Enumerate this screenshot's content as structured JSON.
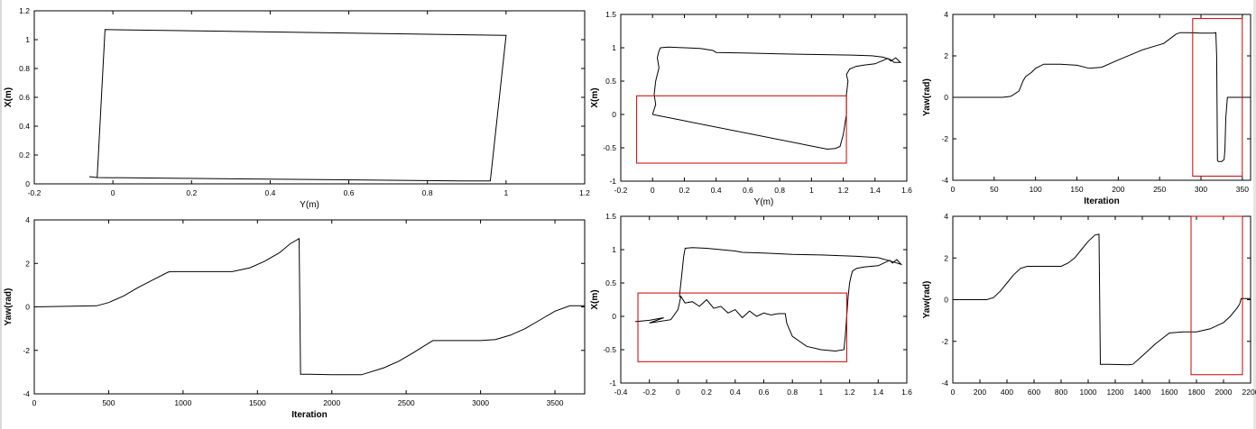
{
  "chart_data": [
    {
      "id": "p1",
      "type": "line",
      "xlabel": "Y(m)",
      "ylabel": "X(m)",
      "xlim": [
        -0.2,
        1.2
      ],
      "ylim": [
        0,
        1.2
      ],
      "xticks": [
        -0.2,
        0,
        0.2,
        0.4,
        0.6,
        0.8,
        1,
        1.2
      ],
      "yticks": [
        0,
        0.2,
        0.4,
        0.6,
        0.8,
        1,
        1.2
      ],
      "grid": false,
      "series": [
        {
          "x": [
            -0.06,
            -0.04,
            0.9,
            0.96,
            1.0,
            -0.02,
            -0.04
          ],
          "y": [
            0.05,
            0.044,
            0.02,
            0.02,
            1.03,
            1.07,
            0.044
          ]
        }
      ],
      "boxes": []
    },
    {
      "id": "p2",
      "type": "line",
      "xlabel": "Y(m)",
      "ylabel": "X(m)",
      "xlim": [
        -0.2,
        1.6
      ],
      "ylim": [
        -1,
        1.5
      ],
      "xticks": [
        -0.2,
        0,
        0.2,
        0.4,
        0.6,
        0.8,
        1,
        1.2,
        1.4,
        1.6
      ],
      "yticks": [
        -1,
        -0.5,
        0,
        0.5,
        1,
        1.5
      ],
      "grid": false,
      "series": [
        {
          "x": [
            0,
            1.1,
            1.15,
            1.18,
            1.2,
            1.22,
            1.22,
            1.23,
            1.22,
            1.24,
            1.28,
            1.33,
            1.4,
            1.48,
            1.5,
            1.53,
            1.56,
            1.52,
            1.5,
            1.45,
            1.38,
            1.25,
            1.0,
            0.8,
            0.6,
            0.4,
            0.38,
            0.3,
            0.2,
            0.1,
            0.05,
            0.04,
            0.03,
            0.04,
            0.02,
            0.01,
            0.02,
            0
          ],
          "y": [
            0,
            -0.52,
            -0.51,
            -0.48,
            -0.3,
            0,
            0.3,
            0.5,
            0.6,
            0.68,
            0.72,
            0.74,
            0.76,
            0.84,
            0.8,
            0.85,
            0.78,
            0.78,
            0.82,
            0.86,
            0.88,
            0.89,
            0.9,
            0.91,
            0.92,
            0.93,
            0.96,
            0.99,
            1.0,
            1.01,
            1.0,
            0.95,
            0.85,
            0.7,
            0.5,
            0.3,
            0.15,
            0
          ]
        }
      ],
      "boxes": [
        {
          "x0": -0.1,
          "x1": 1.22,
          "y0": -0.73,
          "y1": 0.28
        }
      ]
    },
    {
      "id": "p3",
      "type": "line",
      "xlabel": "Iteration",
      "ylabel": "Yaw(rad)",
      "xlim": [
        0,
        360
      ],
      "ylim": [
        -4,
        4
      ],
      "xticks": [
        0,
        50,
        100,
        150,
        200,
        250,
        300,
        350
      ],
      "yticks": [
        -4,
        -2,
        0,
        2,
        4
      ],
      "grid": false,
      "series": [
        {
          "x": [
            0,
            60,
            70,
            80,
            85,
            88,
            95,
            100,
            110,
            130,
            150,
            165,
            180,
            200,
            230,
            255,
            265,
            270,
            275,
            285,
            300,
            310,
            315,
            318,
            319,
            320,
            321,
            325,
            328,
            329,
            330,
            332,
            334,
            336,
            338,
            340,
            345,
            350,
            356
          ],
          "y": [
            0,
            0,
            0.05,
            0.3,
            0.8,
            1.0,
            1.2,
            1.4,
            1.6,
            1.6,
            1.55,
            1.4,
            1.45,
            1.8,
            2.3,
            2.6,
            2.9,
            3.05,
            3.12,
            3.12,
            3.1,
            3.1,
            3.1,
            3.12,
            2.0,
            -3.05,
            -3.1,
            -3.1,
            -3.0,
            -2.5,
            -1.0,
            0,
            0,
            0,
            0,
            0,
            0,
            0,
            0
          ]
        }
      ],
      "boxes": [
        {
          "x0": 290,
          "x1": 350,
          "y0": -3.8,
          "y1": 3.8
        }
      ]
    },
    {
      "id": "p4",
      "type": "line",
      "xlabel": "Iteration",
      "ylabel": "Yaw(rad)",
      "xlim": [
        0,
        3700
      ],
      "ylim": [
        -4,
        4
      ],
      "xticks": [
        0,
        500,
        1000,
        1500,
        2000,
        2500,
        3000,
        3500
      ],
      "yticks": [
        -4,
        -2,
        0,
        2,
        4
      ],
      "grid": false,
      "series": [
        {
          "x": [
            0,
            420,
            500,
            600,
            700,
            800,
            900,
            920,
            1100,
            1330,
            1450,
            1550,
            1650,
            1720,
            1780,
            1790,
            1850,
            2000,
            2200,
            2350,
            2450,
            2550,
            2620,
            2680,
            2800,
            3000,
            3100,
            3200,
            3300,
            3400,
            3500,
            3600,
            3700
          ],
          "y": [
            0,
            0.05,
            0.2,
            0.5,
            0.9,
            1.25,
            1.6,
            1.62,
            1.62,
            1.62,
            1.8,
            2.1,
            2.5,
            2.9,
            3.14,
            -3.1,
            -3.1,
            -3.12,
            -3.12,
            -2.8,
            -2.5,
            -2.1,
            -1.8,
            -1.55,
            -1.55,
            -1.55,
            -1.5,
            -1.3,
            -1.0,
            -0.6,
            -0.2,
            0.05,
            0.05
          ]
        }
      ],
      "boxes": []
    },
    {
      "id": "p5",
      "type": "line",
      "xlabel": "",
      "ylabel": "X(m)",
      "xlim": [
        -0.4,
        1.6
      ],
      "ylim": [
        -1,
        1.5
      ],
      "xticks": [
        -0.4,
        -0.2,
        0,
        0.2,
        0.4,
        0.6,
        0.8,
        1,
        1.2,
        1.4,
        1.6
      ],
      "yticks": [
        -1,
        -0.5,
        0,
        0.5,
        1,
        1.5
      ],
      "grid": false,
      "series": [
        {
          "x": [
            -0.3,
            -0.2,
            -0.1,
            -0.2,
            -0.05,
            0,
            0.02,
            0.05,
            0.1,
            0.15,
            0.2,
            0.25,
            0.3,
            0.35,
            0.4,
            0.45,
            0.5,
            0.55,
            0.6,
            0.65,
            0.7,
            0.75,
            0.76,
            0.8,
            0.9,
            1.0,
            1.1,
            1.16,
            1.17,
            1.18,
            1.19,
            1.2,
            1.21,
            1.22,
            1.25,
            1.3,
            1.4,
            1.48,
            1.5,
            1.53,
            1.56,
            1.5,
            1.4,
            1.25,
            1.0,
            0.8,
            0.6,
            0.45,
            0.4,
            0.3,
            0.2,
            0.1,
            0.05,
            0.04,
            0.03,
            0.02,
            0.01,
            0.02
          ],
          "y": [
            -0.08,
            -0.06,
            -0.02,
            -0.1,
            -0.05,
            0.1,
            0.3,
            0.2,
            0.22,
            0.15,
            0.25,
            0.12,
            0.15,
            0.05,
            0.1,
            -0.02,
            0.08,
            0.0,
            0.05,
            0.02,
            0.04,
            0.04,
            -0.1,
            -0.3,
            -0.45,
            -0.5,
            -0.52,
            -0.5,
            -0.3,
            0,
            0.3,
            0.5,
            0.6,
            0.68,
            0.72,
            0.74,
            0.76,
            0.84,
            0.8,
            0.85,
            0.78,
            0.82,
            0.88,
            0.9,
            0.92,
            0.93,
            0.95,
            0.96,
            0.98,
            1.0,
            1.02,
            1.03,
            1.02,
            0.9,
            0.7,
            0.5,
            0.3,
            0.28
          ]
        }
      ],
      "boxes": [
        {
          "x0": -0.28,
          "x1": 1.18,
          "y0": -0.68,
          "y1": 0.35
        }
      ]
    },
    {
      "id": "p6",
      "type": "line",
      "xlabel": "",
      "ylabel": "Yaw(rad)",
      "xlim": [
        0,
        2200
      ],
      "ylim": [
        -4,
        4
      ],
      "xticks": [
        0,
        200,
        400,
        600,
        800,
        1000,
        1200,
        1400,
        1600,
        1800,
        2000,
        2200
      ],
      "yticks": [
        -4,
        -2,
        0,
        2,
        4
      ],
      "grid": false,
      "series": [
        {
          "x": [
            0,
            250,
            300,
            350,
            400,
            450,
            500,
            550,
            700,
            800,
            850,
            900,
            950,
            1000,
            1050,
            1080,
            1090,
            1150,
            1300,
            1330,
            1400,
            1500,
            1600,
            1700,
            1800,
            1900,
            2000,
            2050,
            2100,
            2120,
            2130,
            2200
          ],
          "y": [
            0,
            0,
            0.1,
            0.4,
            0.8,
            1.2,
            1.5,
            1.6,
            1.6,
            1.6,
            1.75,
            2.0,
            2.4,
            2.8,
            3.1,
            3.14,
            -3.1,
            -3.1,
            -3.12,
            -3.1,
            -2.7,
            -2.1,
            -1.6,
            -1.55,
            -1.55,
            -1.4,
            -1.1,
            -0.8,
            -0.4,
            -0.2,
            0.05,
            0.05
          ]
        }
      ],
      "boxes": [
        {
          "x0": 1760,
          "x1": 2140,
          "y0": -3.6,
          "y1": 4.0
        }
      ]
    }
  ],
  "colors": {
    "line": "#000000",
    "box": "#cc0000",
    "axis": "#000000"
  }
}
